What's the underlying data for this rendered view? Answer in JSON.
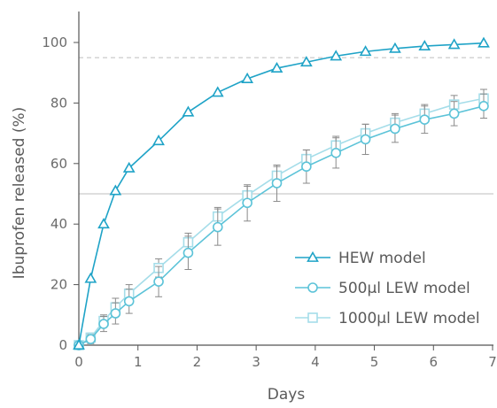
{
  "chart_data": {
    "type": "line",
    "title": "",
    "xlabel": "Days",
    "ylabel": "Ibuprofen released (%)",
    "xlim": [
      0,
      7
    ],
    "ylim": [
      0,
      100
    ],
    "xticks": [
      "0",
      "1",
      "2",
      "3",
      "4",
      "5",
      "6",
      "7"
    ],
    "yticks": [
      "0",
      "20",
      "40",
      "60",
      "80",
      "100"
    ],
    "grid": false,
    "reference_lines": [
      {
        "y": 95,
        "style": "dashed"
      },
      {
        "y": 50,
        "style": "solid"
      }
    ],
    "legend_position": "lower-right",
    "series": [
      {
        "name": "HEW model",
        "color": "#1fa3c7",
        "marker": "triangle",
        "x": [
          0,
          0.2,
          0.42,
          0.62,
          0.85,
          1.35,
          1.85,
          2.35,
          2.85,
          3.35,
          3.85,
          4.35,
          4.85,
          5.35,
          5.85,
          6.35,
          6.85
        ],
        "y": [
          0,
          22,
          40,
          51,
          58.5,
          67.5,
          77,
          83.5,
          88,
          91.5,
          93.5,
          95.5,
          97,
          98,
          98.8,
          99.3,
          99.8
        ],
        "error": []
      },
      {
        "name": "500µl LEW model",
        "color": "#5cc3d8",
        "marker": "circle",
        "x": [
          0,
          0.2,
          0.42,
          0.62,
          0.85,
          1.35,
          1.85,
          2.35,
          2.85,
          3.35,
          3.85,
          4.35,
          4.85,
          5.35,
          5.85,
          6.35,
          6.85
        ],
        "y": [
          0,
          2,
          7,
          10.5,
          14.5,
          21,
          30.5,
          39,
          47,
          53.5,
          59,
          63.5,
          68,
          71.5,
          74.5,
          76.5,
          79
        ],
        "error": [
          0,
          1.5,
          2.5,
          3.5,
          4,
          5,
          5.5,
          6,
          6,
          6,
          5.5,
          5,
          5,
          4.5,
          4.5,
          4,
          4
        ]
      },
      {
        "name": "1000µl LEW model",
        "color": "#a5dde9",
        "marker": "square",
        "x": [
          0,
          0.2,
          0.42,
          0.62,
          0.85,
          1.35,
          1.85,
          2.35,
          2.85,
          3.35,
          3.85,
          4.35,
          4.85,
          5.35,
          5.85,
          6.35,
          6.85
        ],
        "y": [
          0,
          2.5,
          8,
          12.5,
          17,
          25.5,
          34,
          42.5,
          49.5,
          56,
          61.5,
          66,
          70,
          73.5,
          76.5,
          79.5,
          81.5
        ],
        "error": [
          0,
          1.5,
          2,
          3,
          3,
          3,
          3,
          3,
          3,
          3,
          3,
          3,
          3,
          3,
          3,
          3,
          3
        ]
      }
    ]
  }
}
